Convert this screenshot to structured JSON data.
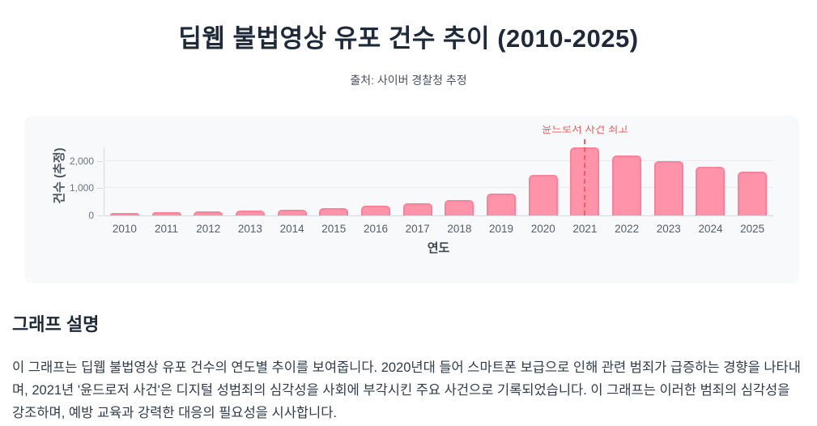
{
  "page": {
    "title": "딥웹 불법영상 유포 건수 추이 (2010-2025)",
    "subtitle": "출처: 사이버 경찰청 추정"
  },
  "chart_data": {
    "type": "bar",
    "categories": [
      "2010",
      "2011",
      "2012",
      "2013",
      "2014",
      "2015",
      "2016",
      "2017",
      "2018",
      "2019",
      "2020",
      "2021",
      "2022",
      "2023",
      "2024",
      "2025"
    ],
    "values": [
      100,
      120,
      150,
      180,
      220,
      280,
      350,
      450,
      580,
      800,
      1500,
      2500,
      2200,
      2000,
      1800,
      1600
    ],
    "xlabel": "연도",
    "ylabel": "건수 (추정)",
    "ylim": [
      0,
      2500
    ],
    "yticks": [
      0,
      1000,
      2000
    ],
    "ytick_labels": [
      "0",
      "1,000",
      "2,000"
    ],
    "grid": true,
    "legend": false,
    "bar_color": "#ff93a9",
    "bar_border_color": "#fd8099",
    "annotation": {
      "text": "윤드로저 사건 최고",
      "x": "2021",
      "line_style": "dashed",
      "color": "#f15f5f"
    }
  },
  "description": {
    "heading": "그래프 설명",
    "body": "이 그래프는 딥웹 불법영상 유포 건수의 연도별 추이를 보여줍니다. 2020년대 들어 스마트폰 보급으로 인해 관련 범죄가 급증하는 경향을 나타내며, 2021년 '윤드로저 사건'은 디지털 성범죄의 심각성을 사회에 부각시킨 주요 사건으로 기록되었습니다. 이 그래프는 이러한 범죄의 심각성을 강조하며, 예방 교육과 강력한 대응의 필요성을 시사합니다."
  }
}
